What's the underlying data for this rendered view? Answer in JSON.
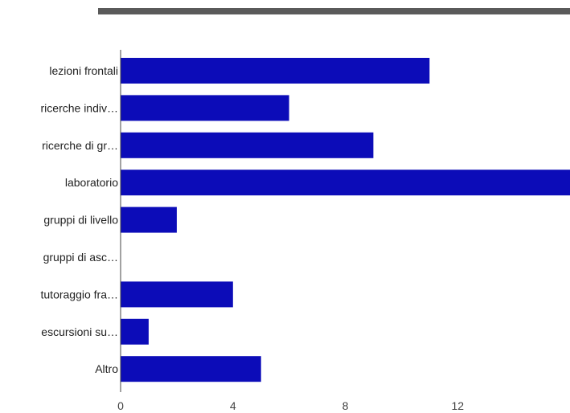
{
  "chart_data": {
    "type": "bar",
    "orientation": "horizontal",
    "categories": [
      "lezioni frontali",
      "ricerche indiv…",
      "ricerche di gr…",
      "laboratorio",
      "gruppi di livello",
      "gruppi di asc…",
      "tutoraggio fra…",
      "escursioni su…",
      "Altro"
    ],
    "values": [
      11,
      6,
      9,
      16,
      2,
      0,
      4,
      1,
      5
    ],
    "xticks": [
      0,
      4,
      8,
      12
    ],
    "xlim": [
      0,
      16
    ],
    "title": "",
    "xlabel": "",
    "ylabel": "",
    "bar_color": "#0c0cb8",
    "axis_color": "#444444",
    "grid": false,
    "legend": "none"
  }
}
